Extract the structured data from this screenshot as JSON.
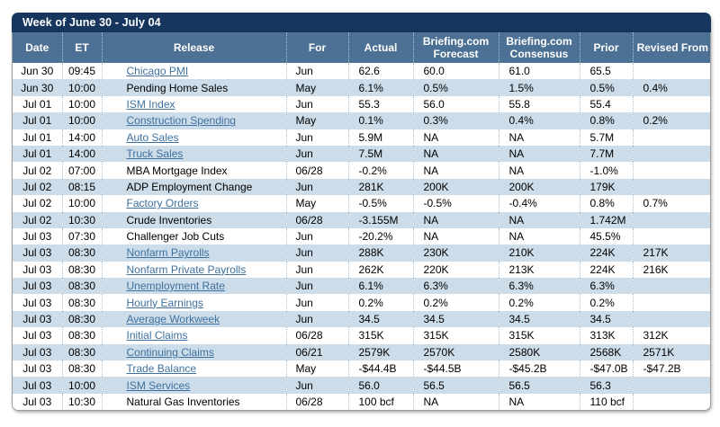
{
  "title": "Week of June 30 - July 04",
  "colors": {
    "title_bg": "#16365E",
    "header_bg": "#4C7194",
    "alt_row_bg": "#CCDCE9",
    "link": "#3E719F",
    "dotted_separator": "#AEBFCB"
  },
  "table": {
    "columns": [
      {
        "key": "date",
        "label": "Date"
      },
      {
        "key": "et",
        "label": "ET"
      },
      {
        "key": "release",
        "label": "Release"
      },
      {
        "key": "for",
        "label": "For"
      },
      {
        "key": "actual",
        "label": "Actual"
      },
      {
        "key": "forecast",
        "label": "Briefing.com Forecast"
      },
      {
        "key": "consensus",
        "label": "Briefing.com Consensus"
      },
      {
        "key": "prior",
        "label": "Prior"
      },
      {
        "key": "revised",
        "label": "Revised From"
      }
    ],
    "rows": [
      {
        "date": "Jun 30",
        "et": "09:45",
        "release": "Chicago PMI",
        "link": true,
        "for": "Jun",
        "actual": "62.6",
        "forecast": "60.0",
        "consensus": "61.0",
        "prior": "65.5",
        "revised": ""
      },
      {
        "date": "Jun 30",
        "et": "10:00",
        "release": "Pending Home Sales",
        "link": false,
        "for": "May",
        "actual": "6.1%",
        "forecast": "0.5%",
        "consensus": "1.5%",
        "prior": "0.5%",
        "revised": "0.4%"
      },
      {
        "date": "Jul 01",
        "et": "10:00",
        "release": "ISM Index",
        "link": true,
        "for": "Jun",
        "actual": "55.3",
        "forecast": "56.0",
        "consensus": "55.8",
        "prior": "55.4",
        "revised": ""
      },
      {
        "date": "Jul 01",
        "et": "10:00",
        "release": "Construction Spending",
        "link": true,
        "for": "May",
        "actual": "0.1%",
        "forecast": "0.3%",
        "consensus": "0.4%",
        "prior": "0.8%",
        "revised": "0.2%"
      },
      {
        "date": "Jul 01",
        "et": "14:00",
        "release": "Auto Sales",
        "link": true,
        "for": "Jun",
        "actual": "5.9M",
        "forecast": "NA",
        "consensus": "NA",
        "prior": "5.7M",
        "revised": ""
      },
      {
        "date": "Jul 01",
        "et": "14:00",
        "release": "Truck Sales",
        "link": true,
        "for": "Jun",
        "actual": "7.5M",
        "forecast": "NA",
        "consensus": "NA",
        "prior": "7.7M",
        "revised": ""
      },
      {
        "date": "Jul 02",
        "et": "07:00",
        "release": "MBA Mortgage Index",
        "link": false,
        "for": "06/28",
        "actual": "-0.2%",
        "forecast": "NA",
        "consensus": "NA",
        "prior": "-1.0%",
        "revised": ""
      },
      {
        "date": "Jul 02",
        "et": "08:15",
        "release": "ADP Employment Change",
        "link": false,
        "for": "Jun",
        "actual": "281K",
        "forecast": "200K",
        "consensus": "200K",
        "prior": "179K",
        "revised": ""
      },
      {
        "date": "Jul 02",
        "et": "10:00",
        "release": "Factory Orders",
        "link": true,
        "for": "May",
        "actual": "-0.5%",
        "forecast": "-0.5%",
        "consensus": "-0.4%",
        "prior": "0.8%",
        "revised": "0.7%"
      },
      {
        "date": "Jul 02",
        "et": "10:30",
        "release": "Crude Inventories",
        "link": false,
        "for": "06/28",
        "actual": "-3.155M",
        "forecast": "NA",
        "consensus": "NA",
        "prior": "1.742M",
        "revised": ""
      },
      {
        "date": "Jul 03",
        "et": "07:30",
        "release": "Challenger Job Cuts",
        "link": false,
        "for": "Jun",
        "actual": "-20.2%",
        "forecast": "NA",
        "consensus": "NA",
        "prior": "45.5%",
        "revised": ""
      },
      {
        "date": "Jul 03",
        "et": "08:30",
        "release": "Nonfarm Payrolls",
        "link": true,
        "for": "Jun",
        "actual": "288K",
        "forecast": "230K",
        "consensus": "210K",
        "prior": "224K",
        "revised": "217K"
      },
      {
        "date": "Jul 03",
        "et": "08:30",
        "release": "Nonfarm Private Payrolls",
        "link": true,
        "for": "Jun",
        "actual": "262K",
        "forecast": "220K",
        "consensus": "213K",
        "prior": "224K",
        "revised": "216K"
      },
      {
        "date": "Jul 03",
        "et": "08:30",
        "release": "Unemployment Rate",
        "link": true,
        "for": "Jun",
        "actual": "6.1%",
        "forecast": "6.3%",
        "consensus": "6.3%",
        "prior": "6.3%",
        "revised": ""
      },
      {
        "date": "Jul 03",
        "et": "08:30",
        "release": "Hourly Earnings",
        "link": true,
        "for": "Jun",
        "actual": "0.2%",
        "forecast": "0.2%",
        "consensus": "0.2%",
        "prior": "0.2%",
        "revised": ""
      },
      {
        "date": "Jul 03",
        "et": "08:30",
        "release": "Average Workweek",
        "link": true,
        "for": "Jun",
        "actual": "34.5",
        "forecast": "34.5",
        "consensus": "34.5",
        "prior": "34.5",
        "revised": ""
      },
      {
        "date": "Jul 03",
        "et": "08:30",
        "release": "Initial Claims",
        "link": true,
        "for": "06/28",
        "actual": "315K",
        "forecast": "315K",
        "consensus": "315K",
        "prior": "313K",
        "revised": "312K"
      },
      {
        "date": "Jul 03",
        "et": "08:30",
        "release": "Continuing Claims",
        "link": true,
        "for": "06/21",
        "actual": "2579K",
        "forecast": "2570K",
        "consensus": "2580K",
        "prior": "2568K",
        "revised": "2571K"
      },
      {
        "date": "Jul 03",
        "et": "08:30",
        "release": "Trade Balance",
        "link": true,
        "for": "May",
        "actual": "-$44.4B",
        "forecast": "-$44.5B",
        "consensus": "-$45.2B",
        "prior": "-$47.0B",
        "revised": "-$47.2B"
      },
      {
        "date": "Jul 03",
        "et": "10:00",
        "release": "ISM Services",
        "link": true,
        "for": "Jun",
        "actual": "56.0",
        "forecast": "56.5",
        "consensus": "56.5",
        "prior": "56.3",
        "revised": ""
      },
      {
        "date": "Jul 03",
        "et": "10:30",
        "release": "Natural Gas Inventories",
        "link": false,
        "for": "06/28",
        "actual": "100 bcf",
        "forecast": "NA",
        "consensus": "NA",
        "prior": "110 bcf",
        "revised": ""
      }
    ]
  }
}
